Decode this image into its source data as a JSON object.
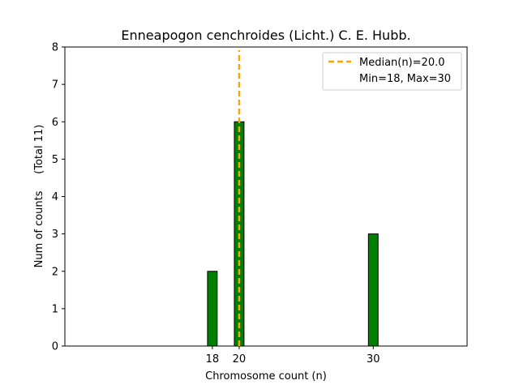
{
  "chart_data": {
    "type": "bar",
    "title": "Enneapogon cenchroides (Licht.) C. E. Hubb.",
    "xlabel": "Chromosome count (n)",
    "ylabel": "Num of counts     (Total 11)",
    "x": [
      18,
      20,
      30
    ],
    "values": [
      2,
      6,
      3
    ],
    "xticks": [
      "18",
      "20",
      "30"
    ],
    "yticks": [
      "0",
      "1",
      "2",
      "3",
      "4",
      "5",
      "6",
      "7",
      "8"
    ],
    "ylim": [
      0,
      8
    ],
    "xlim": [
      7,
      37
    ],
    "median": 20.0,
    "grid": false,
    "legend_position": "top-right",
    "legend": {
      "median_label": "Median(n)=20.0",
      "range_label": "Min=18, Max=30"
    },
    "colors": {
      "bar_fill": "#008000",
      "bar_edge": "#000000",
      "median_line": "#ffa500"
    }
  }
}
